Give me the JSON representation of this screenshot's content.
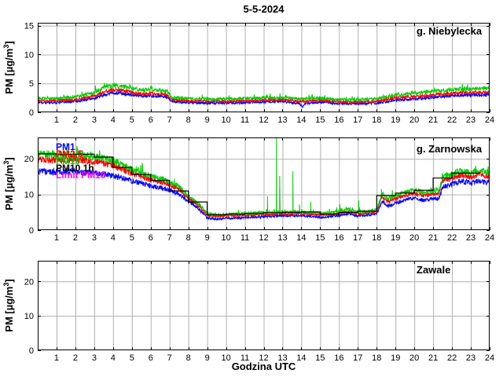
{
  "figure": {
    "title": "5-5-2024",
    "xlabel": "Godzina UTC",
    "ylabel": "PM [µg/m³]",
    "ylabel_pre": "PM [µg/m",
    "ylabel_sup": "3",
    "ylabel_post": "]",
    "background": "#ffffff"
  },
  "colors": {
    "pm1": "#0000ff",
    "pm25": "#ff0000",
    "pm10": "#00cc00",
    "pm10_1h": "#000000",
    "limit_pm10": "#ff00ff",
    "grid": "#b0b0b0",
    "axis": "#000000"
  },
  "chart_data": [
    {
      "type": "line",
      "station": "g. Niebylecka",
      "xlim": [
        0,
        24
      ],
      "ylim": [
        0,
        15.5
      ],
      "xticks": [
        1,
        2,
        3,
        4,
        5,
        6,
        7,
        8,
        9,
        10,
        11,
        12,
        13,
        14,
        15,
        16,
        17,
        18,
        19,
        20,
        21,
        22,
        23,
        24
      ],
      "yticks": [
        0,
        5,
        10,
        15
      ],
      "grid": true,
      "noise": [
        0.12,
        0.06
      ],
      "series": [
        {
          "name": "PM1",
          "color": "#0000ff",
          "anchors": [
            [
              0,
              1.7
            ],
            [
              1,
              1.7
            ],
            [
              2,
              1.9
            ],
            [
              3,
              2.4
            ],
            [
              3.5,
              3.0
            ],
            [
              4,
              3.4
            ],
            [
              4.5,
              3.3
            ],
            [
              5,
              3.0
            ],
            [
              5.5,
              2.8
            ],
            [
              6,
              2.9
            ],
            [
              6.5,
              2.8
            ],
            [
              6.9,
              2.6
            ],
            [
              7.1,
              1.9
            ],
            [
              8,
              1.7
            ],
            [
              9,
              1.6
            ],
            [
              10,
              1.6
            ],
            [
              11,
              1.7
            ],
            [
              12,
              1.8
            ],
            [
              13,
              1.9
            ],
            [
              13.9,
              1.5
            ],
            [
              14.05,
              0.9
            ],
            [
              14.2,
              1.5
            ],
            [
              15,
              1.8
            ],
            [
              16,
              1.5
            ],
            [
              17,
              1.5
            ],
            [
              18,
              1.6
            ],
            [
              19,
              2.1
            ],
            [
              20,
              2.3
            ],
            [
              21,
              2.6
            ],
            [
              22,
              2.9
            ],
            [
              23,
              3.0
            ],
            [
              24,
              3.1
            ]
          ]
        },
        {
          "name": "PM2.5",
          "color": "#ff0000",
          "anchors": [
            [
              0,
              2.0
            ],
            [
              1,
              2.0
            ],
            [
              2,
              2.2
            ],
            [
              3,
              2.8
            ],
            [
              3.5,
              3.5
            ],
            [
              4,
              3.9
            ],
            [
              4.5,
              3.8
            ],
            [
              5,
              3.5
            ],
            [
              5.5,
              3.2
            ],
            [
              6,
              3.3
            ],
            [
              6.5,
              3.2
            ],
            [
              6.9,
              3.0
            ],
            [
              7.1,
              2.2
            ],
            [
              8,
              2.0
            ],
            [
              9,
              1.9
            ],
            [
              10,
              1.9
            ],
            [
              11,
              2.0
            ],
            [
              12,
              2.1
            ],
            [
              13,
              2.2
            ],
            [
              14,
              1.9
            ],
            [
              15,
              2.1
            ],
            [
              16,
              1.8
            ],
            [
              17,
              1.8
            ],
            [
              18,
              1.9
            ],
            [
              19,
              2.5
            ],
            [
              20,
              2.7
            ],
            [
              21,
              3.0
            ],
            [
              22,
              3.3
            ],
            [
              23,
              3.4
            ],
            [
              24,
              3.5
            ]
          ]
        },
        {
          "name": "PM10",
          "color": "#00cc00",
          "spiky": true,
          "anchors": [
            [
              0,
              2.4
            ],
            [
              1,
              2.4
            ],
            [
              2,
              2.7
            ],
            [
              3,
              3.4
            ],
            [
              3.5,
              4.2
            ],
            [
              4,
              4.6
            ],
            [
              4.5,
              4.5
            ],
            [
              5,
              4.2
            ],
            [
              5.5,
              3.8
            ],
            [
              6,
              4.0
            ],
            [
              6.5,
              3.8
            ],
            [
              6.9,
              3.6
            ],
            [
              7.1,
              2.6
            ],
            [
              8,
              2.4
            ],
            [
              9,
              2.3
            ],
            [
              10,
              2.3
            ],
            [
              11,
              2.4
            ],
            [
              12,
              2.5
            ],
            [
              13,
              2.6
            ],
            [
              14,
              2.3
            ],
            [
              15,
              2.5
            ],
            [
              16,
              2.2
            ],
            [
              17,
              2.2
            ],
            [
              18,
              2.3
            ],
            [
              19,
              3.0
            ],
            [
              20,
              3.3
            ],
            [
              21,
              3.6
            ],
            [
              22,
              3.9
            ],
            [
              23,
              4.1
            ],
            [
              24,
              4.2
            ]
          ]
        }
      ]
    },
    {
      "type": "line",
      "station": "g. Zarnowska",
      "xlim": [
        0,
        24
      ],
      "ylim": [
        0,
        26
      ],
      "xticks": [
        1,
        2,
        3,
        4,
        5,
        6,
        7,
        8,
        9,
        10,
        11,
        12,
        13,
        14,
        15,
        16,
        17,
        18,
        19,
        20,
        21,
        22,
        23,
        24
      ],
      "yticks": [
        0,
        10,
        20
      ],
      "grid": true,
      "noise": [
        0.18,
        0.045
      ],
      "legend": [
        {
          "label": "PM1",
          "color": "#0000ff"
        },
        {
          "label": "PM2.5",
          "color": "#ff0000"
        },
        {
          "label": "PM10",
          "color": "#00cc00"
        },
        {
          "label": "PM10 1h",
          "color": "#000000"
        },
        {
          "label": "Limit PM10",
          "color": "#ff00ff"
        }
      ],
      "series": [
        {
          "name": "PM1",
          "color": "#0000ff",
          "anchors": [
            [
              0,
              16.6
            ],
            [
              1,
              16.3
            ],
            [
              2,
              16.5
            ],
            [
              3,
              16.0
            ],
            [
              4,
              15.3
            ],
            [
              5,
              13.8
            ],
            [
              6,
              12.5
            ],
            [
              7,
              11.2
            ],
            [
              7.5,
              10.2
            ],
            [
              8,
              8.0
            ],
            [
              8.5,
              6.3
            ],
            [
              9,
              3.4
            ],
            [
              9.5,
              3.1
            ],
            [
              10,
              3.3
            ],
            [
              11,
              3.5
            ],
            [
              12,
              3.8
            ],
            [
              13,
              4.0
            ],
            [
              14,
              4.1
            ],
            [
              15,
              3.6
            ],
            [
              16,
              4.1
            ],
            [
              16.5,
              4.6
            ],
            [
              17,
              4.0
            ],
            [
              17.5,
              4.3
            ],
            [
              18,
              4.6
            ],
            [
              18.3,
              8.0
            ],
            [
              18.6,
              6.8
            ],
            [
              19,
              7.5
            ],
            [
              19.5,
              8.5
            ],
            [
              20,
              9.0
            ],
            [
              20.5,
              8.3
            ],
            [
              21,
              8.8
            ],
            [
              21.3,
              8.8
            ],
            [
              21.5,
              12.0
            ],
            [
              22,
              12.8
            ],
            [
              22.5,
              13.8
            ],
            [
              23,
              13.2
            ],
            [
              23.5,
              13.8
            ],
            [
              24,
              13.2
            ]
          ]
        },
        {
          "name": "PM2.5",
          "color": "#ff0000",
          "spikes": [
            [
              12.85,
              12.0
            ]
          ],
          "anchors": [
            [
              0,
              20.0
            ],
            [
              1,
              19.6
            ],
            [
              2,
              19.9
            ],
            [
              3,
              19.3
            ],
            [
              4,
              18.3
            ],
            [
              5,
              15.9
            ],
            [
              6,
              14.2
            ],
            [
              7,
              12.7
            ],
            [
              7.5,
              11.5
            ],
            [
              8,
              9.0
            ],
            [
              8.5,
              7.0
            ],
            [
              9,
              4.2
            ],
            [
              9.5,
              3.8
            ],
            [
              10,
              4.0
            ],
            [
              11,
              4.2
            ],
            [
              12,
              4.4
            ],
            [
              13,
              4.6
            ],
            [
              14,
              4.7
            ],
            [
              15,
              4.2
            ],
            [
              16,
              4.7
            ],
            [
              16.5,
              5.2
            ],
            [
              17,
              4.5
            ],
            [
              17.5,
              4.8
            ],
            [
              18,
              5.2
            ],
            [
              18.3,
              9.5
            ],
            [
              18.6,
              8.0
            ],
            [
              19,
              8.8
            ],
            [
              19.5,
              9.8
            ],
            [
              20,
              10.3
            ],
            [
              20.5,
              9.7
            ],
            [
              21,
              10.2
            ],
            [
              21.3,
              10.2
            ],
            [
              21.5,
              13.8
            ],
            [
              22,
              14.6
            ],
            [
              22.5,
              15.6
            ],
            [
              23,
              15.0
            ],
            [
              23.5,
              15.6
            ],
            [
              24,
              15.0
            ]
          ]
        },
        {
          "name": "PM10",
          "color": "#00cc00",
          "spiky": true,
          "spikes": [
            [
              12.2,
              9.5
            ],
            [
              12.68,
              26
            ],
            [
              12.85,
              15.2
            ],
            [
              13.55,
              16.5
            ],
            [
              13.9,
              7.2
            ],
            [
              14.5,
              8.0
            ],
            [
              16.05,
              7.3
            ],
            [
              17.05,
              8.3
            ],
            [
              18.25,
              11.5
            ]
          ],
          "anchors": [
            [
              0,
              21.4
            ],
            [
              1,
              21.0
            ],
            [
              2,
              21.3
            ],
            [
              3,
              20.7
            ],
            [
              4,
              19.6
            ],
            [
              5,
              17.0
            ],
            [
              6,
              15.2
            ],
            [
              7,
              13.6
            ],
            [
              7.5,
              12.3
            ],
            [
              8,
              9.7
            ],
            [
              8.5,
              7.6
            ],
            [
              9,
              4.7
            ],
            [
              9.5,
              4.3
            ],
            [
              10,
              4.5
            ],
            [
              11,
              4.7
            ],
            [
              12,
              4.9
            ],
            [
              13,
              5.1
            ],
            [
              14,
              5.2
            ],
            [
              15,
              4.7
            ],
            [
              16,
              5.2
            ],
            [
              16.5,
              5.8
            ],
            [
              17,
              5.0
            ],
            [
              17.5,
              5.3
            ],
            [
              18,
              5.7
            ],
            [
              18.3,
              10.3
            ],
            [
              18.6,
              8.7
            ],
            [
              19,
              9.6
            ],
            [
              19.5,
              10.6
            ],
            [
              20,
              11.2
            ],
            [
              20.5,
              10.5
            ],
            [
              21,
              11.0
            ],
            [
              21.3,
              11.0
            ],
            [
              21.5,
              14.8
            ],
            [
              22,
              15.7
            ],
            [
              22.5,
              16.8
            ],
            [
              23,
              16.1
            ],
            [
              23.5,
              16.8
            ],
            [
              24,
              16.2
            ]
          ]
        }
      ],
      "step_series": {
        "name": "PM10 1h",
        "color": "#000000",
        "hourly_values": [
          21.4,
          21.2,
          21.3,
          20.5,
          17.6,
          15.6,
          13.9,
          11.0,
          7.9,
          4.3,
          4.5,
          4.7,
          4.9,
          5.0,
          5.1,
          4.5,
          5.0,
          5.3,
          9.7,
          10.4,
          11.2,
          14.6,
          16.0,
          16.0
        ],
        "x_end": 23.5
      }
    },
    {
      "type": "line",
      "station": "Zawale",
      "xlim": [
        0,
        24
      ],
      "ylim": [
        0,
        26
      ],
      "xticks": [
        1,
        2,
        3,
        4,
        5,
        6,
        7,
        8,
        9,
        10,
        11,
        12,
        13,
        14,
        15,
        16,
        17,
        18,
        19,
        20,
        21,
        22,
        23,
        24
      ],
      "yticks": [
        0,
        10,
        20
      ],
      "grid": true,
      "noise": [
        0,
        0
      ],
      "series": []
    }
  ]
}
